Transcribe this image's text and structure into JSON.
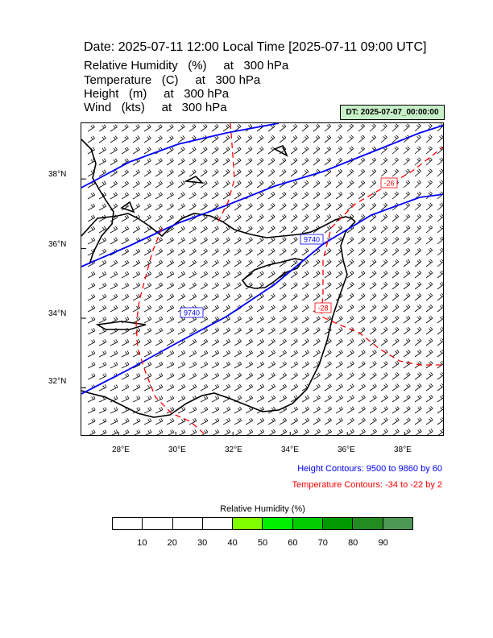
{
  "header": {
    "title": "Date: 2025-07-11  12:00 Local Time [2025-07-11  09:00 UTC]",
    "fields": [
      "Relative Humidity   (%)     at   300 hPa",
      "Temperature   (C)     at   300 hPa",
      "Height   (m)     at   300 hPa",
      "Wind   (kts)     at   300 hPa"
    ],
    "dt_badge": "DT: 2025-07-07_00:00:00"
  },
  "map": {
    "lon_range": [
      26.7,
      39.4
    ],
    "lat_range": [
      30.6,
      39.6
    ],
    "lat_ticks": [
      "38°N",
      "36°N",
      "34°N",
      "32°N"
    ],
    "lon_ticks": [
      "28°E",
      "30°E",
      "32°E",
      "34°E",
      "36°E",
      "38°E"
    ],
    "contour_labels": {
      "height": [
        "9740",
        "9740"
      ],
      "temperature": [
        "-26",
        "-28"
      ]
    },
    "colors": {
      "height": "#0000ff",
      "temperature": "#ff0000",
      "coast": "#000000"
    }
  },
  "notes": {
    "height": "Height Contours: 9500 to 9860 by 60",
    "temperature": "Temperature Contours: -34 to -22 by 2"
  },
  "legend": {
    "title": "Relative Humidity  (%)",
    "colors": [
      "#ffffff",
      "#ffffff",
      "#ffffff",
      "#ffffff",
      "#80ff00",
      "#00ee00",
      "#00cc00",
      "#009900",
      "#228b22",
      "#4c9955"
    ],
    "labels": [
      "10",
      "20",
      "30",
      "40",
      "50",
      "60",
      "70",
      "80",
      "90"
    ]
  }
}
